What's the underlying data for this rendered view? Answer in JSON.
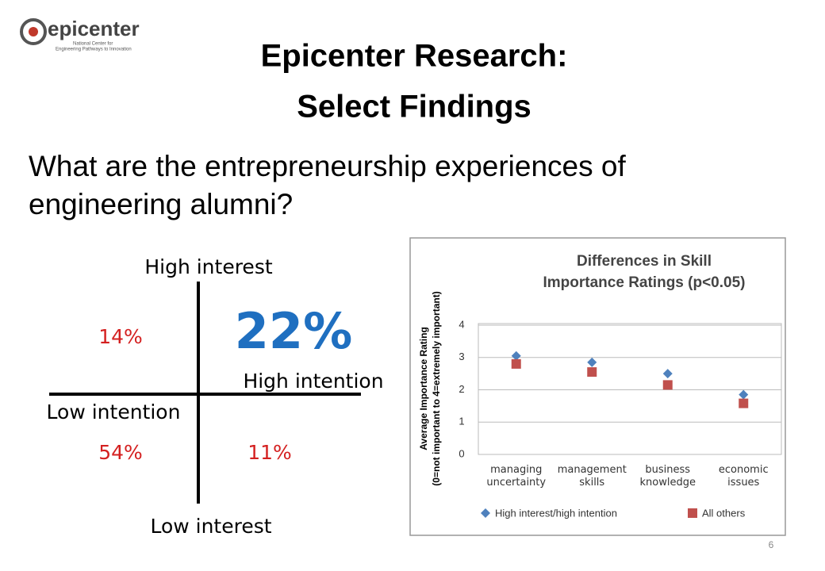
{
  "logo": {
    "name": "epicenter",
    "line1": "National Center for",
    "line2": "Engineering Pathways to Innovation"
  },
  "title": [
    "Epicenter Research:",
    "Select Findings"
  ],
  "question": "What are the entrepreneurship experiences of engineering alumni?",
  "quadrant": {
    "top": "High interest",
    "bottom": "Low interest",
    "right": "High intention",
    "left": "Low intention",
    "top_right": "22%",
    "top_left": "14%",
    "bottom_left": "54%",
    "bottom_right": "11%"
  },
  "chart_data": {
    "type": "dot",
    "title": [
      "Differences in Skill",
      "Importance Ratings (p<0.05)"
    ],
    "ylabel": [
      "Average Importance  Rating",
      "(0=not important to 4=extremely important)"
    ],
    "categories": [
      "managing uncertainty",
      "management skills",
      "business knowledge",
      "economic issues"
    ],
    "series": [
      {
        "name": "High interest/high intention",
        "color": "#4f81bd",
        "marker": "diamond",
        "values": [
          3.05,
          2.85,
          2.5,
          1.85
        ]
      },
      {
        "name": "All others",
        "color": "#c0504d",
        "marker": "square",
        "values": [
          2.8,
          2.55,
          2.15,
          1.58
        ]
      }
    ],
    "ylim": [
      0,
      4
    ],
    "yticks": [
      0,
      1,
      2,
      3,
      4
    ],
    "grid": true,
    "legend": "bottom"
  },
  "page_number": "6"
}
